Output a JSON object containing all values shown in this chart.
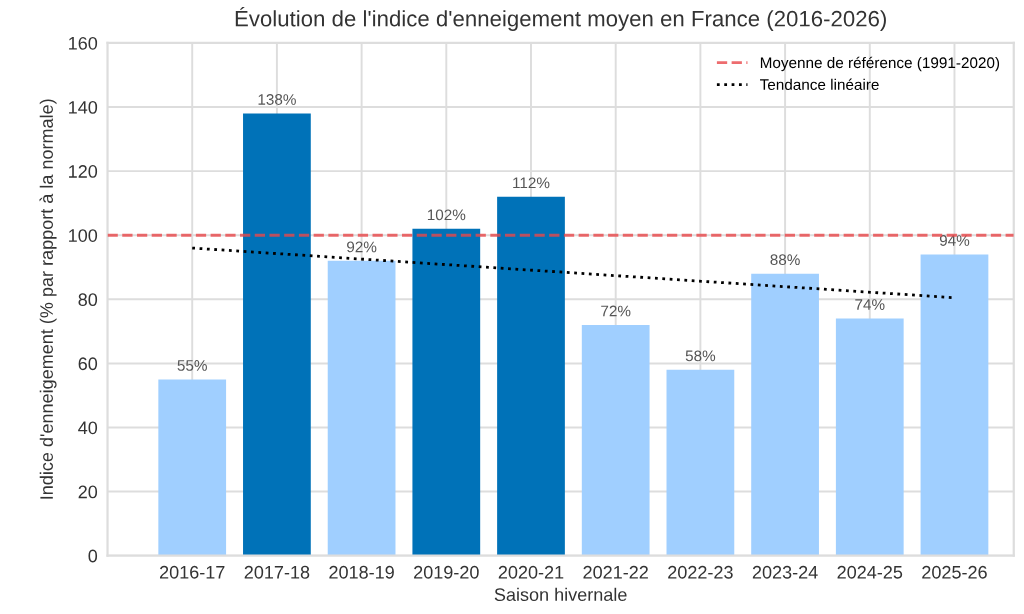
{
  "chart_data": {
    "type": "bar",
    "title": "Évolution de l'indice d'enneigement moyen en France (2016-2026)",
    "xlabel": "Saison hivernale",
    "ylabel": "Indice d'enneigement (% par rapport à la normale)",
    "categories": [
      "2016-17",
      "2017-18",
      "2018-19",
      "2019-20",
      "2020-21",
      "2021-22",
      "2022-23",
      "2023-24",
      "2024-25",
      "2025-26"
    ],
    "series": [
      {
        "values": [
          55,
          138,
          92,
          102,
          112,
          72,
          58,
          88,
          74,
          94
        ],
        "colors": [
          "#a0cfff",
          "#0072b8",
          "#a0cfff",
          "#0072b8",
          "#0072b8",
          "#a0cfff",
          "#a0cfff",
          "#a0cfff",
          "#a0cfff",
          "#a0cfff"
        ],
        "value_labels": [
          "55%",
          "138%",
          "92%",
          "102%",
          "112%",
          "72%",
          "58%",
          "88%",
          "74%",
          "94%"
        ]
      },
      {
        "type": "line",
        "name": "Tendance linéaire",
        "color": "#000000",
        "line_style": "dotted",
        "x": [
          "2016-17",
          "2025-26"
        ],
        "values": [
          96,
          80.5
        ]
      }
    ],
    "ref_lines": [
      {
        "axis": "y",
        "value": 100,
        "label": "Moyenne de référence (1991-2020)",
        "color": "#e8474a",
        "line_style": "dashed"
      }
    ],
    "ylim": [
      0,
      160
    ],
    "yticks": [
      0,
      20,
      40,
      60,
      80,
      100,
      120,
      140,
      160
    ],
    "grid": true,
    "legend": "top right"
  }
}
